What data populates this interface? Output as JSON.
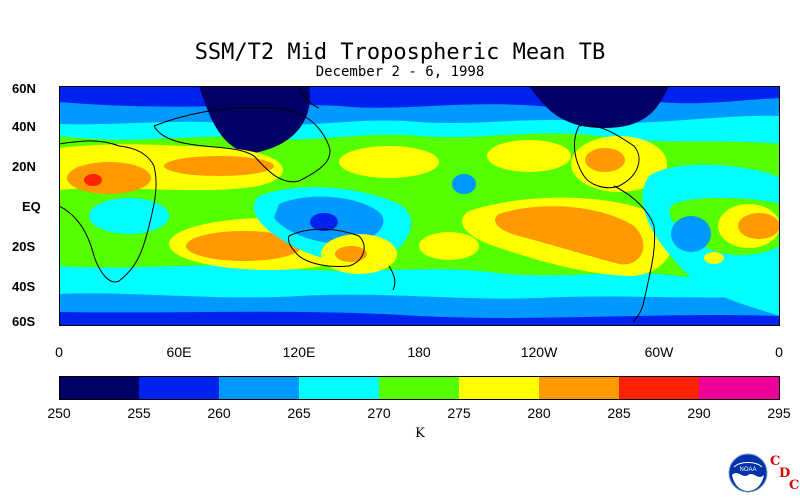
{
  "title": "SSM/T2 Mid Tropospheric Mean TB",
  "subtitle": "December 2 - 6, 1998",
  "map": {
    "lat_labels": [
      "60N",
      "40N",
      "20N",
      "EQ",
      "20S",
      "40S",
      "60S"
    ],
    "lon_labels": [
      "0",
      "60E",
      "120E",
      "180",
      "120W",
      "60W",
      "0"
    ]
  },
  "colorbar": {
    "levels": [
      "250",
      "255",
      "260",
      "265",
      "270",
      "275",
      "280",
      "285",
      "290",
      "295"
    ],
    "colors": [
      "#000066",
      "#0022ee",
      "#0099ff",
      "#00ffff",
      "#55ff00",
      "#ffff00",
      "#ff9900",
      "#ff2200",
      "#ee0099"
    ],
    "unit": "K"
  },
  "logo": {
    "text": "NOAA",
    "cdc_letters": [
      "C",
      "D",
      "C"
    ]
  }
}
